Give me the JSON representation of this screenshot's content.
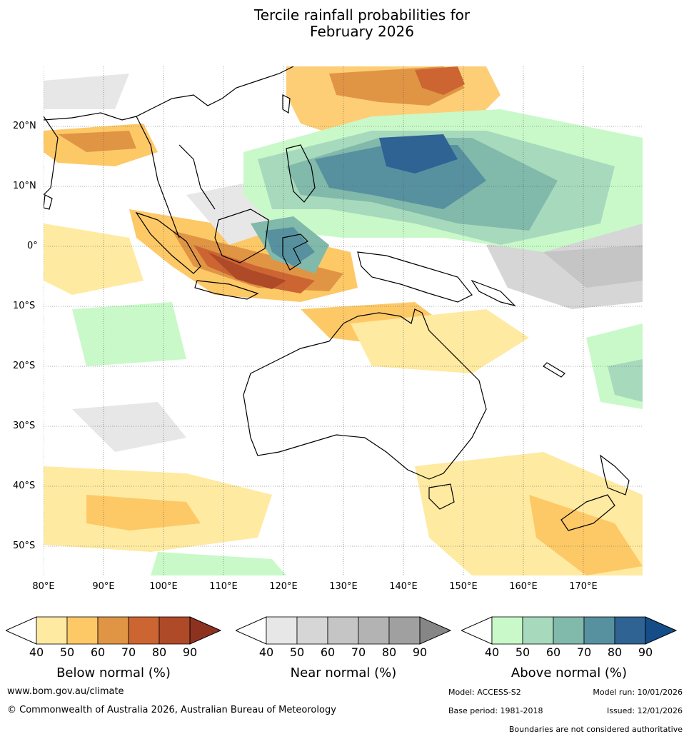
{
  "title": {
    "line1": "Tercile rainfall probabilities for",
    "line2": "February 2026"
  },
  "map": {
    "lat_labels": [
      "20°N",
      "10°N",
      "0°",
      "10°S",
      "20°S",
      "30°S",
      "40°S",
      "50°S"
    ],
    "lon_labels": [
      "80°E",
      "90°E",
      "100°E",
      "110°E",
      "120°E",
      "130°E",
      "140°E",
      "150°E",
      "160°E",
      "170°E"
    ]
  },
  "colorbars": [
    {
      "title": "Below normal (%)",
      "ticks": [
        "40",
        "50",
        "60",
        "70",
        "80",
        "90"
      ],
      "colors": [
        "#ffffff",
        "#ffeaa2",
        "#fdc967",
        "#e09545",
        "#cc6532",
        "#ae4a28",
        "#8e3220"
      ]
    },
    {
      "title": "Near normal (%)",
      "ticks": [
        "40",
        "50",
        "60",
        "70",
        "80",
        "90"
      ],
      "colors": [
        "#ffffff",
        "#e7e7e7",
        "#d6d6d6",
        "#c5c5c5",
        "#b3b3b3",
        "#a0a0a0",
        "#868686"
      ]
    },
    {
      "title": "Above normal (%)",
      "ticks": [
        "40",
        "50",
        "60",
        "70",
        "80",
        "90"
      ],
      "colors": [
        "#ffffff",
        "#c9f9c9",
        "#a7d9bd",
        "#81b9ab",
        "#5791a0",
        "#2e6394",
        "#144d88"
      ]
    }
  ],
  "footer": {
    "website": "www.bom.gov.au/climate",
    "copyright": "© Commonwealth of Australia 2026, Australian Bureau of Meteorology",
    "model": "Model: ACCESS-S2",
    "model_run": "Model run: 10/01/2026",
    "base_period": "Base period: 1981-2018",
    "issued": "Issued: 12/01/2026",
    "disclaimer": "Boundaries are not considered authoritative"
  }
}
